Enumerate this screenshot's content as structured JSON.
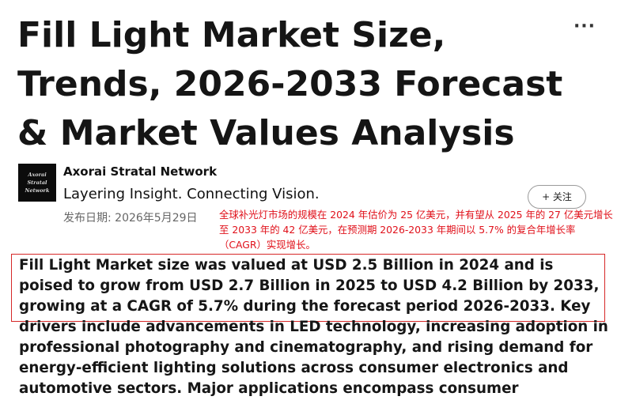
{
  "article": {
    "title": "Fill Light Market Size, Trends, 2026-2033 Forecast & Market Values Analysis",
    "more_label": "···"
  },
  "author": {
    "avatar_lines": [
      "Axorai",
      "Stratal",
      "Network"
    ],
    "name": "Axorai Stratal Network",
    "tagline": "Layering Insight. Connecting Vision.",
    "follow_label": "+ 关注"
  },
  "meta": {
    "publish_date": "发布日期: 2026年5月29日"
  },
  "annotation": {
    "text": "全球补光灯市场的规模在 2024 年估价为 25 亿美元，并有望从 2025 年的 27 亿美元增长至 2033 年的 42 亿美元，在预测期 2026-2033 年期间以 5.7% 的复合年增长率（CAGR）实现增长。"
  },
  "body": {
    "paragraph": "Fill Light Market size was valued at USD 2.5 Billion in 2024 and is poised to grow from USD 2.7 Billion in 2025 to USD 4.2 Billion by 2033, growing at a CAGR of 5.7% during the forecast period 2026-2033. Key drivers include advancements in LED technology, increasing adoption in professional photography and cinematography, and rising demand for energy-efficient lighting solutions across consumer electronics and automotive sectors. Major applications encompass consumer"
  },
  "colors": {
    "annotation": "#e0101a",
    "highlight_border": "#d62828",
    "avatar_bg": "#0c0c0c"
  },
  "icons": {
    "more": "more-horizontal-icon"
  }
}
